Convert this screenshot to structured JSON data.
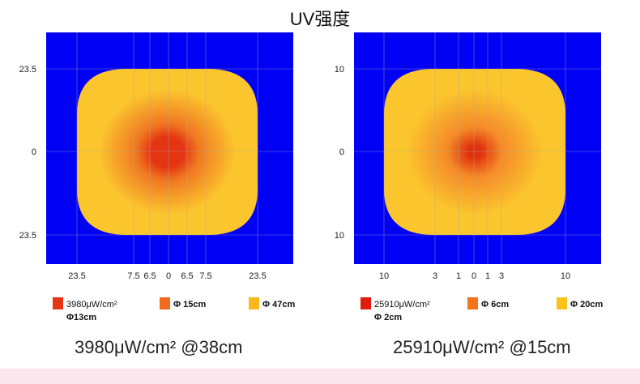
{
  "title": "UV强度",
  "colors": {
    "background": "#0000f5",
    "yellow": "#fbc22a",
    "orange": "#f56f1a",
    "red": "#e32a10"
  },
  "chart_data": [
    {
      "type": "heatmap",
      "xticks": [
        "23.5",
        "7.5",
        "6.5",
        "0",
        "6.5",
        "7.5",
        "23.5"
      ],
      "xtickvals": [
        -23.5,
        -7.5,
        -6.5,
        0,
        6.5,
        7.5,
        23.5
      ],
      "yticks": [
        "23.5",
        "0",
        "23.5"
      ],
      "ytickvals": [
        23.5,
        0,
        -23.5
      ],
      "range": [
        -34,
        34
      ],
      "grid": true,
      "legend": [
        {
          "label": "3980μW/cm²",
          "sub": "Φ13cm",
          "color": "#e43412"
        },
        {
          "label": "Φ 15cm",
          "color": "#f26a1c"
        },
        {
          "label": "Φ 47cm",
          "color": "#f9b81c"
        }
      ],
      "caption": "3980μW/cm² @38cm",
      "core": "#e43412",
      "mid": "#f07822",
      "outer": "#fbc52e",
      "core_r": 0.18,
      "mid_r": 0.35
    },
    {
      "type": "heatmap",
      "xticks": [
        "10",
        "3",
        "1",
        "0",
        "1",
        "3",
        "10"
      ],
      "xtickvals": [
        -10,
        -3,
        -1,
        0,
        1,
        3,
        10
      ],
      "yticks": [
        "10",
        "0",
        "10"
      ],
      "ytickvals": [
        10,
        0,
        -10
      ],
      "range": [
        -14.5,
        15
      ],
      "grid": true,
      "legend": [
        {
          "label": "25910μW/cm²",
          "sub": "Φ 2cm",
          "color": "#e01c0e"
        },
        {
          "label": "Φ 6cm",
          "color": "#f5731c"
        },
        {
          "label": "Φ 20cm",
          "color": "#fbc21c"
        }
      ],
      "caption": "25910μW/cm² @15cm",
      "core": "#e0300c",
      "mid": "#f58a28",
      "outer": "#fbc52e",
      "core_r": 0.07,
      "mid_r": 0.3
    }
  ]
}
